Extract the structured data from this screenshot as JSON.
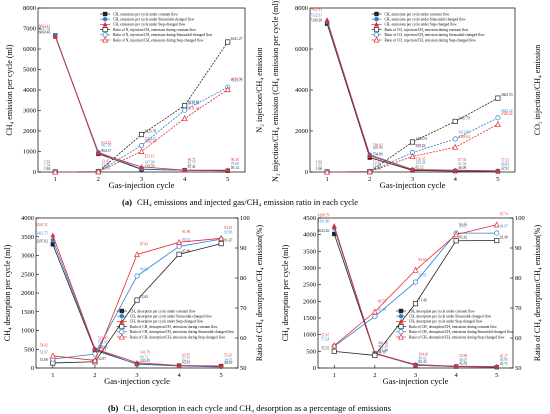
{
  "captions": {
    "a_label": "(a)",
    "a_text": "CH₄ emissions and injected gas/CH₄ emission ratio in each cycle",
    "b_label": "(b)",
    "b_text": "CH₄ desorption in each cycle and CH₄ desorption as a percentage of emissions"
  },
  "colors": {
    "black": "#222222",
    "red": "#e8282b",
    "blue": "#2a7fd4"
  },
  "chart_data": [
    {
      "id": "a1",
      "type": "line",
      "xlabel": "Gas-injection cycle",
      "ylabel": "CH₄ emission per cycle (ml)",
      "y2label": "N₂ injection/CH₄ emission",
      "x": [
        1,
        2,
        3,
        4,
        5
      ],
      "xlim": [
        0.6,
        5.4
      ],
      "ylim": [
        0,
        8000
      ],
      "yticks": [
        0,
        1000,
        2000,
        3000,
        4000,
        5000,
        6000,
        7000,
        8000
      ],
      "xticks": [
        1,
        2,
        3,
        4,
        5
      ],
      "legend_position": "top-center",
      "series": [
        {
          "name": "CH₄ emissions per cycle under constant flow",
          "color": "black",
          "marker": "square",
          "values": [
            6660.46,
            884.37,
            129.7,
            87.41,
            59.14
          ],
          "labels": [
            "6660.46",
            "884.37",
            "129.70",
            "87.41",
            "59.14"
          ]
        },
        {
          "name": "CH₄ emissions per cycle under Sinusoidal-changed flow",
          "color": "blue",
          "marker": "circle",
          "values": [
            6647.54,
            967.19,
            147.09,
            82.77,
            79.08
          ],
          "labels": [
            "6647.54",
            "967.19",
            "147.09",
            "82.77",
            "79.08"
          ]
        },
        {
          "name": "CH₄ emissions per cycle under Step-changed flow",
          "color": "red",
          "marker": "triangle",
          "values": [
            6604.41,
            913.23,
            251.15,
            90.71,
            90.3
          ],
          "labels": [
            "6604.41",
            "913.23",
            "251.15",
            "90.71",
            "90.30"
          ]
        },
        {
          "name": "Ratio of N₂ injection/CH₄ emissions during constant flow",
          "color": "black",
          "marker": "open-square",
          "values": [
            1.84,
            13.7,
            1825.78,
            3239.81,
            6341.27
          ],
          "labels": [
            "1.84",
            "13.70",
            "1825.78",
            "3239.81",
            "6341.27"
          ]
        },
        {
          "name": "Ratio of N₂ injection/CH₄ emissions during Sinusoidal-changed flow",
          "color": "blue",
          "marker": "open-circle",
          "values": [
            1.5,
            13.84,
            1294.21,
            3013.28,
            4133.79
          ],
          "labels": [
            "1.50",
            "13.84",
            "1294.21",
            "3013.28",
            "4133.79"
          ]
        },
        {
          "name": "Ratio of N₂ injection/CH₄ emissions during Step-changed flow",
          "color": "red",
          "marker": "open-triangle",
          "values": [
            1.52,
            13.43,
            1002.24,
            2611.34,
            4020.94
          ],
          "labels": [
            "1.52",
            "13.43",
            "1002.24",
            "2611.34",
            "4020.94"
          ]
        }
      ]
    },
    {
      "id": "a2",
      "type": "line",
      "xlabel": "Gas-injection cycle",
      "ylabel": "N₂ injection/CH₄ emission (CH₄ emission per cycle (ml))",
      "y2label": "CO₂ injection/CH₄ emission",
      "x": [
        1,
        2,
        3,
        4,
        5
      ],
      "xlim": [
        0.6,
        5.4
      ],
      "ylim": [
        0,
        8000
      ],
      "yticks": [
        0,
        2000,
        4000,
        6000,
        8000
      ],
      "xticks": [
        1,
        2,
        3,
        4,
        5
      ],
      "legend_position": "top-center",
      "series": [
        {
          "name": "CH₄ emissions per cycle under constant flow",
          "color": "black",
          "marker": "square",
          "values": [
            7240.28,
            704.86,
            82.12,
            46.09,
            32.92
          ],
          "labels": [
            "7240.28",
            "704.86",
            "82.12",
            "46.09",
            "32.92"
          ]
        },
        {
          "name": "CH₄ emissions per cycle under Sinusoidal-changed flow",
          "color": "blue",
          "marker": "circle",
          "values": [
            7322.91,
            846.86,
            120.38,
            61.34,
            48.84
          ],
          "labels": [
            "7322.91",
            "846.86",
            "120.38",
            "61.34",
            "48.84"
          ]
        },
        {
          "name": "CH₄ emissions per cycle under Step-changed flow",
          "color": "red",
          "marker": "triangle",
          "values": [
            7422.81,
            789.82,
            120.35,
            87.35,
            57.25
          ],
          "labels": [
            "7422.81",
            "789.82",
            "120.35",
            "87.35",
            "57.25"
          ]
        },
        {
          "name": "Ratio of CO₂ injection/CH₄ emission during constant flow",
          "color": "black",
          "marker": "open-square",
          "values": [
            1.66,
            14.46,
            1463.51,
            2467.79,
            3604.53
          ],
          "labels": [
            "1.66",
            "14.46",
            "1463.51",
            "2467.79",
            "3604.53"
          ]
        },
        {
          "name": "Ratio of CO₂ injection/CH₄ emission during Sinusoidal-changed flow",
          "color": "blue",
          "marker": "open-circle",
          "values": [
            1.63,
            12.33,
            948.83,
            1613.83,
            2642.22
          ],
          "labels": [
            "1.63",
            "12.33",
            "948.83",
            "1613.83",
            "2642.22"
          ]
        },
        {
          "name": "Ratio of CO₂ injection/CH₄ emission during Step-changed flow",
          "color": "red",
          "marker": "open-triangle",
          "values": [
            1.62,
            15.22,
            757.31,
            1209.04,
            2329.44
          ],
          "labels": [
            "1.62",
            "15.22",
            "757.31",
            "1209.04",
            "2329.44"
          ]
        }
      ]
    },
    {
      "id": "b1",
      "type": "line",
      "xlabel": "Gas-injection cycle",
      "ylabel": "CH₄ desorption per cycle (ml)",
      "y2label": "Ratio of CH₄ desorption/CH₄ emission(%)",
      "x": [
        1,
        2,
        3,
        4,
        5
      ],
      "xlim": [
        0.6,
        5.4
      ],
      "ylim": [
        0,
        4000
      ],
      "yticks": [
        0,
        500,
        1000,
        1500,
        2000,
        2500,
        3000,
        3500,
        4000
      ],
      "y2lim": [
        50,
        100
      ],
      "y2ticks": [
        50,
        60,
        70,
        80,
        90,
        100
      ],
      "xticks": [
        1,
        2,
        3,
        4,
        5
      ],
      "legend_position": "center-right",
      "series": [
        {
          "name": "CH₄ desorption per cycle under constant flow",
          "color": "black",
          "marker": "square",
          "axis": "left",
          "values": [
            3297.82,
            470.71,
            105.45,
            62.81,
            48.19
          ],
          "labels": [
            "3297.82",
            "470.71",
            "105.45",
            "62.81",
            "48.19"
          ]
        },
        {
          "name": "CH₄ desorption per cycle under Sinusoidal-changed flow",
          "color": "blue",
          "marker": "circle",
          "axis": "left",
          "values": [
            3413.75,
            502.95,
            99.72,
            52.77,
            28.95
          ],
          "labels": [
            "3413.75",
            "502.95",
            "99.72",
            "52.77",
            "28.95"
          ]
        },
        {
          "name": "CH₄ desorption per cycle under Step-changed flow",
          "color": "red",
          "marker": "triangle",
          "axis": "left",
          "values": [
            3541.31,
            512.47,
            141.79,
            65.87,
            55.2
          ],
          "labels": [
            "3541.31",
            "512.47",
            "141.79",
            "65.87",
            "55.20"
          ]
        },
        {
          "name": "Ratio of CH₄ desorption/CH₄ emissions during constant flow",
          "color": "black",
          "marker": "open-square",
          "axis": "right",
          "values": [
            51.68,
            52.07,
            72.63,
            87.89,
            91.47
          ],
          "labels": [
            "51.68",
            "52.07",
            "72.63",
            "87.89",
            "91.47"
          ]
        },
        {
          "name": "Ratio of CH₄ desorption/CH₄ emissions during Sinusoidal-changed flow",
          "color": "blue",
          "marker": "open-circle",
          "axis": "right",
          "values": [
            52.97,
            54.66,
            80.66,
            90.52,
            92.96
          ],
          "labels": [
            "52.97",
            "54.66",
            "80.66",
            "90.52",
            "92.96"
          ]
        },
        {
          "name": "Ratio of CH₄ desorption/CH₄ emissions during Step-changed flow",
          "color": "red",
          "marker": "open-triangle",
          "axis": "right",
          "values": [
            54.02,
            52.53,
            87.83,
            91.89,
            93.23
          ],
          "labels": [
            "54.02",
            "52.53",
            "87.83",
            "91.89",
            "93.23"
          ]
        }
      ]
    },
    {
      "id": "b2",
      "type": "line",
      "xlabel": "Gas-injection cycle",
      "ylabel": "CH₄ desorption per cycle (ml)",
      "y2label": "Ratio of CH₄ desorption/CH₄ emission(%)",
      "x": [
        1,
        2,
        3,
        4,
        5
      ],
      "xlim": [
        0.6,
        5.4
      ],
      "ylim": [
        0,
        4500
      ],
      "yticks": [
        0,
        500,
        1000,
        1500,
        2000,
        2500,
        3000,
        3500,
        4000,
        4500
      ],
      "y2lim": [
        50,
        100
      ],
      "y2ticks": [
        50,
        60,
        70,
        80,
        90,
        100
      ],
      "xticks": [
        1,
        2,
        3,
        4,
        5
      ],
      "legend_position": "center-right",
      "series": [
        {
          "name": "CH₄ desorption per cycle under constant flow",
          "color": "black",
          "marker": "square",
          "axis": "left",
          "values": [
            4022.26,
            431.4,
            83.43,
            42.83,
            25.71
          ],
          "labels": [
            "4022.26",
            "431.40",
            "83.43",
            "42.83",
            "25.71"
          ]
        },
        {
          "name": "CH₄ desorption per cycle under Sinusoidal-changed flow",
          "color": "blue",
          "marker": "circle",
          "axis": "left",
          "values": [
            4191.86,
            443.28,
            80.02,
            46.07,
            36.95
          ],
          "labels": [
            "4191.86",
            "443.28",
            "80.02",
            "46.07",
            "36.95"
          ]
        },
        {
          "name": "CH₄ desorption per cycle under Step-changed flow",
          "color": "red",
          "marker": "triangle",
          "axis": "left",
          "values": [
            4268.79,
            442.48,
            104.41,
            53.98,
            45.27
          ],
          "labels": [
            "4268.79",
            "442.48",
            "104.41",
            "53.98",
            "45.27"
          ]
        },
        {
          "name": "Ratio of CH₄ desorption/CH₄ emissions during constant flow",
          "color": "black",
          "marker": "open-square",
          "axis": "right",
          "values": [
            55.55,
            54.19,
            71.46,
            92.42,
            92.49
          ],
          "labels": [
            "55.55",
            "54.19",
            "71.46",
            "92.42",
            "92.49"
          ]
        },
        {
          "name": "Ratio of CH₄ desorption/CH₄ emissions during Sinusoidal-changed flow",
          "color": "blue",
          "marker": "open-circle",
          "axis": "right",
          "values": [
            57.24,
            67.18,
            78.65,
            94.97,
            94.97
          ],
          "labels": [
            "57.24",
            "67.18",
            "78.65",
            "94.97",
            "94.97"
          ]
        },
        {
          "name": "Ratio of CH₄ desorption/CH₄ emissions during Step-changed flow",
          "color": "red",
          "marker": "open-triangle",
          "axis": "right",
          "values": [
            57.47,
            68.75,
            82.63,
            94.45,
            97.74
          ],
          "labels": [
            "57.47",
            "68.75",
            "82.63",
            "94.45",
            "97.74"
          ]
        }
      ]
    }
  ]
}
